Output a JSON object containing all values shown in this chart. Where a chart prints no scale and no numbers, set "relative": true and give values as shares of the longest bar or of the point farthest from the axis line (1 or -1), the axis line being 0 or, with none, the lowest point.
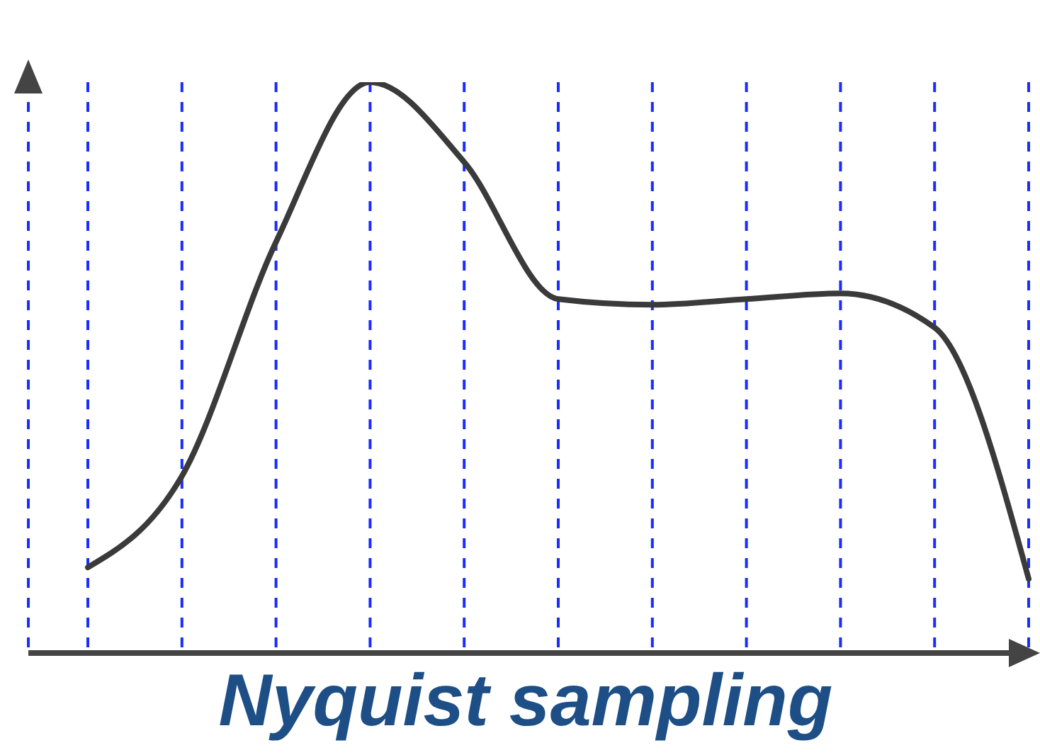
{
  "chart_data": {
    "type": "line",
    "title": "Nyquist sampling",
    "relative": true,
    "categories": [
      null,
      null,
      null,
      null,
      null,
      null,
      null,
      null,
      null,
      null,
      null
    ],
    "series": [
      {
        "color": "#3a3a3a",
        "values": [
          0.15,
          0.31,
          0.72,
          1,
          0.86,
          0.62,
          0.61,
          0.62,
          0.63,
          0.57,
          0.13
        ]
      }
    ],
    "grid": "x",
    "marker": "none",
    "line_style": "solid"
  }
}
